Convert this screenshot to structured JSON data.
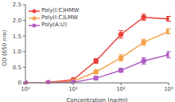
{
  "chart_data": {
    "type": "line",
    "x_label": "Concentration (ng/ml)",
    "y_label": "OD (650 nm)",
    "log": "x",
    "grid": false,
    "legend": "upper left",
    "xlim": [
      1,
      1000
    ],
    "xticks": [
      {
        "value": 1,
        "label": "10⁰"
      },
      {
        "value": 10,
        "label": "10¹"
      },
      {
        "value": 100,
        "label": "10²"
      },
      {
        "value": 1000,
        "label": "10³"
      }
    ],
    "ylim": [
      0,
      2.5
    ],
    "yticks": [
      0,
      0.5,
      {
        "value": 1,
        "label": "1.0"
      },
      1.5,
      {
        "value": 2,
        "label": "2.0"
      },
      2.5
    ],
    "x": [
      1,
      3,
      10,
      30,
      100,
      300,
      1000
    ],
    "series": [
      {
        "name": "Poly(I:C)HMW",
        "color": "#e8413c",
        "marker": "circle",
        "values": [
          0,
          0.01,
          0.1,
          0.7,
          1.55,
          2.1,
          2.05
        ],
        "errors": [
          0.02,
          0.02,
          0.04,
          0.08,
          0.12,
          0.1,
          0.08
        ]
      },
      {
        "name": "Poly(I:C)LMW",
        "color": "#f5a24a",
        "marker": "circle",
        "values": [
          0,
          0,
          0.05,
          0.35,
          0.8,
          1.3,
          1.65
        ],
        "errors": [
          0.02,
          0.02,
          0.03,
          0.06,
          0.1,
          0.1,
          0.08
        ]
      },
      {
        "name": "Poly(A:U)",
        "color": "#b05cc4",
        "marker": "circle",
        "values": [
          0,
          0,
          0.02,
          0.15,
          0.4,
          0.7,
          0.9
        ],
        "errors": [
          0.02,
          0.02,
          0.02,
          0.05,
          0.06,
          0.1,
          0.1
        ]
      }
    ]
  }
}
